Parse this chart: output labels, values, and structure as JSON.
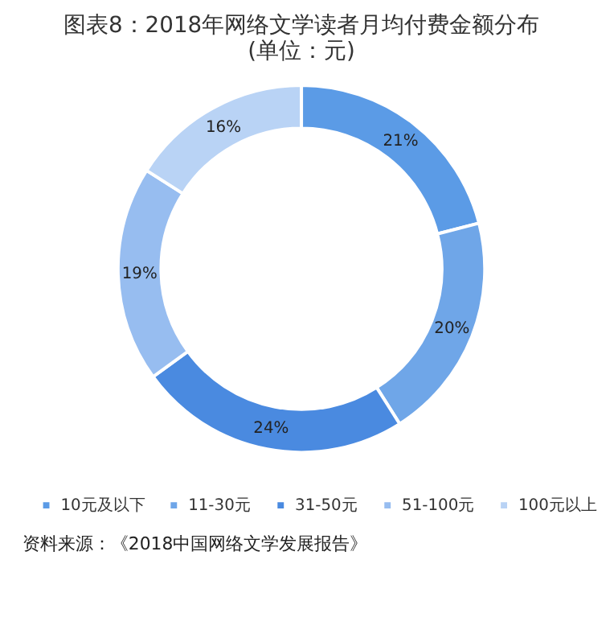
{
  "chart_data": {
    "type": "donut",
    "title": [
      "图表8：2018年网络文学读者月均付费金额分布",
      "(单位：元)"
    ],
    "categories": [
      "10元及以下",
      "11-30元",
      "31-50元",
      "51-100元",
      "100元以上"
    ],
    "values": [
      21,
      20,
      24,
      19,
      16
    ],
    "colors": [
      "#5b9be6",
      "#6fa6e8",
      "#4a8ae0",
      "#97bdf0",
      "#b9d3f5"
    ],
    "value_labels": [
      "21%",
      "20%",
      "24%",
      "19%",
      "16%"
    ],
    "legend": "bottom",
    "annotations": [
      "资料来源：《2018中国网络文学发展报告》"
    ]
  }
}
